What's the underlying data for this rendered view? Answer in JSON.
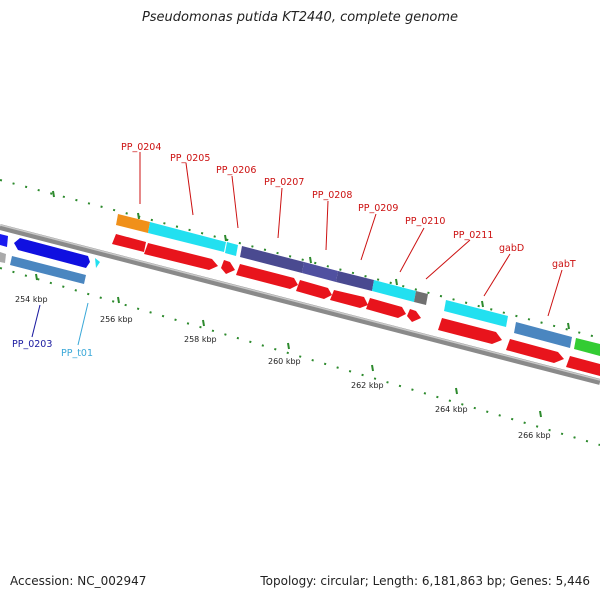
{
  "title": "Pseudomonas putida KT2440, complete genome",
  "footer": {
    "accession": "Accession: NC_002947",
    "summary": "Topology: circular; Length: 6,181,863 bp; Genes: 5,446"
  },
  "colors": {
    "backbone": "#8a8a8a",
    "gene_red": "#e8141c",
    "ruler_green": "#2d8a2d",
    "label_red": "#cc1111",
    "label_blue": "#1a1aa0",
    "label_cyan": "#3aa8d8"
  },
  "ticks": [
    "254 kbp",
    "256 kbp",
    "258 kbp",
    "260 kbp",
    "262 kbp",
    "264 kbp",
    "266 kbp"
  ],
  "gene_labels": {
    "pp0203": "PP_0203",
    "ppt01": "PP_t01",
    "pp0204": "PP_0204",
    "pp0205": "PP_0205",
    "pp0206": "PP_0206",
    "pp0207": "PP_0207",
    "pp0208": "PP_0208",
    "pp0209": "PP_0209",
    "pp0210": "PP_0210",
    "pp0211": "PP_0211",
    "gabd": "gabD",
    "gabt": "gabT"
  }
}
